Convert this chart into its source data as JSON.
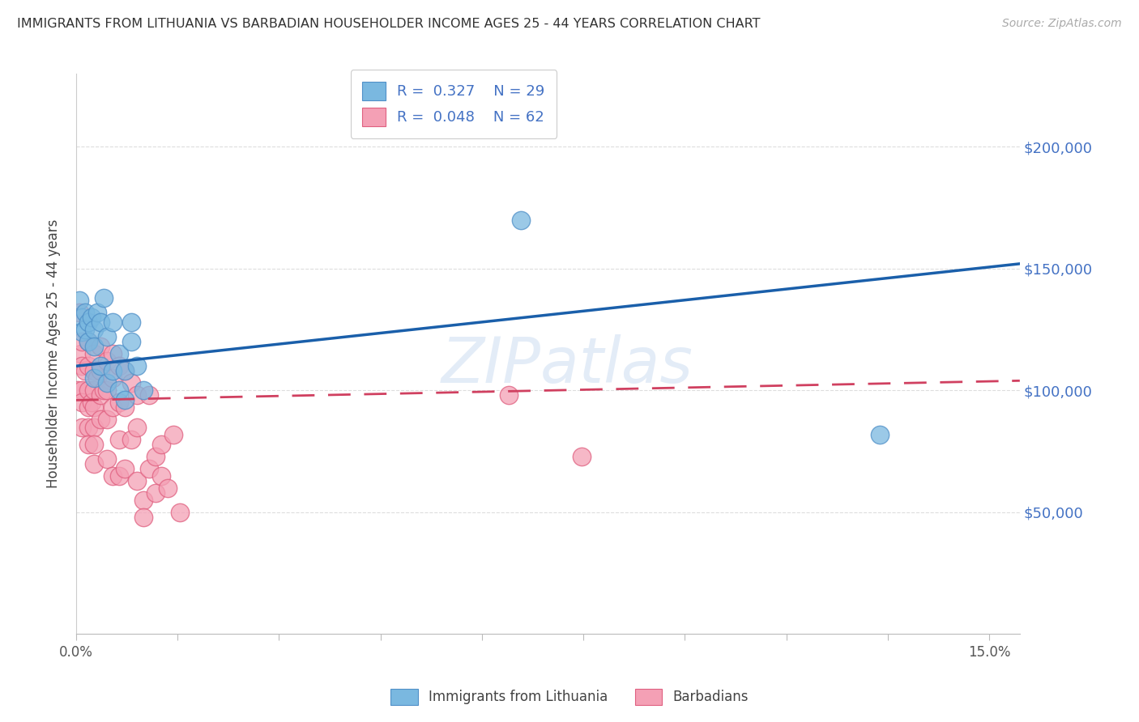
{
  "title": "IMMIGRANTS FROM LITHUANIA VS BARBADIAN HOUSEHOLDER INCOME AGES 25 - 44 YEARS CORRELATION CHART",
  "source": "Source: ZipAtlas.com",
  "ylabel": "Householder Income Ages 25 - 44 years",
  "legend_label_1": "Immigrants from Lithuania",
  "legend_label_2": "Barbadians",
  "color_blue": "#7ab8e0",
  "color_pink": "#f4a0b5",
  "color_blue_edge": "#5090c8",
  "color_pink_edge": "#e06080",
  "color_line_blue": "#1a5faa",
  "color_line_pink": "#d04060",
  "color_yaxis_labels": "#4472c4",
  "color_title": "#333333",
  "yaxis_labels": [
    "$200,000",
    "$150,000",
    "$100,000",
    "$50,000"
  ],
  "yaxis_values": [
    200000,
    150000,
    100000,
    50000
  ],
  "ylim": [
    0,
    230000
  ],
  "xlim": [
    0.0,
    0.155
  ],
  "blue_x": [
    0.0005,
    0.001,
    0.001,
    0.0015,
    0.0015,
    0.002,
    0.002,
    0.0025,
    0.003,
    0.003,
    0.003,
    0.0035,
    0.004,
    0.004,
    0.0045,
    0.005,
    0.005,
    0.006,
    0.006,
    0.007,
    0.007,
    0.008,
    0.008,
    0.009,
    0.009,
    0.01,
    0.011,
    0.073,
    0.132
  ],
  "blue_y": [
    137000,
    130000,
    124000,
    132000,
    125000,
    128000,
    120000,
    130000,
    125000,
    118000,
    105000,
    132000,
    128000,
    110000,
    138000,
    122000,
    103000,
    128000,
    108000,
    115000,
    100000,
    108000,
    96000,
    128000,
    120000,
    110000,
    100000,
    170000,
    82000
  ],
  "pink_x": [
    0.0003,
    0.0005,
    0.0008,
    0.001,
    0.001,
    0.001,
    0.001,
    0.001,
    0.0015,
    0.002,
    0.002,
    0.002,
    0.002,
    0.002,
    0.002,
    0.0025,
    0.003,
    0.003,
    0.003,
    0.003,
    0.003,
    0.003,
    0.003,
    0.0035,
    0.004,
    0.004,
    0.004,
    0.004,
    0.0045,
    0.005,
    0.005,
    0.005,
    0.005,
    0.006,
    0.006,
    0.006,
    0.006,
    0.007,
    0.007,
    0.007,
    0.007,
    0.008,
    0.008,
    0.008,
    0.009,
    0.009,
    0.01,
    0.01,
    0.01,
    0.011,
    0.011,
    0.012,
    0.012,
    0.013,
    0.013,
    0.014,
    0.014,
    0.015,
    0.016,
    0.017,
    0.071,
    0.083
  ],
  "pink_y": [
    100000,
    132000,
    115000,
    120000,
    110000,
    100000,
    95000,
    85000,
    108000,
    120000,
    110000,
    100000,
    93000,
    85000,
    78000,
    95000,
    115000,
    108000,
    100000,
    93000,
    85000,
    78000,
    70000,
    105000,
    118000,
    108000,
    98000,
    88000,
    100000,
    112000,
    100000,
    88000,
    72000,
    115000,
    105000,
    93000,
    65000,
    110000,
    95000,
    80000,
    65000,
    108000,
    93000,
    68000,
    103000,
    80000,
    98000,
    85000,
    63000,
    55000,
    48000,
    98000,
    68000,
    73000,
    58000,
    78000,
    65000,
    60000,
    82000,
    50000,
    98000,
    73000
  ],
  "watermark": "ZIPatlas",
  "background_color": "#ffffff",
  "grid_color": "#dddddd",
  "trend_blue_x0": 0.0,
  "trend_blue_y0": 110000,
  "trend_blue_x1": 0.155,
  "trend_blue_y1": 152000,
  "trend_pink_x0": 0.0,
  "trend_pink_y0": 96000,
  "trend_pink_x1": 0.155,
  "trend_pink_y1": 104000
}
